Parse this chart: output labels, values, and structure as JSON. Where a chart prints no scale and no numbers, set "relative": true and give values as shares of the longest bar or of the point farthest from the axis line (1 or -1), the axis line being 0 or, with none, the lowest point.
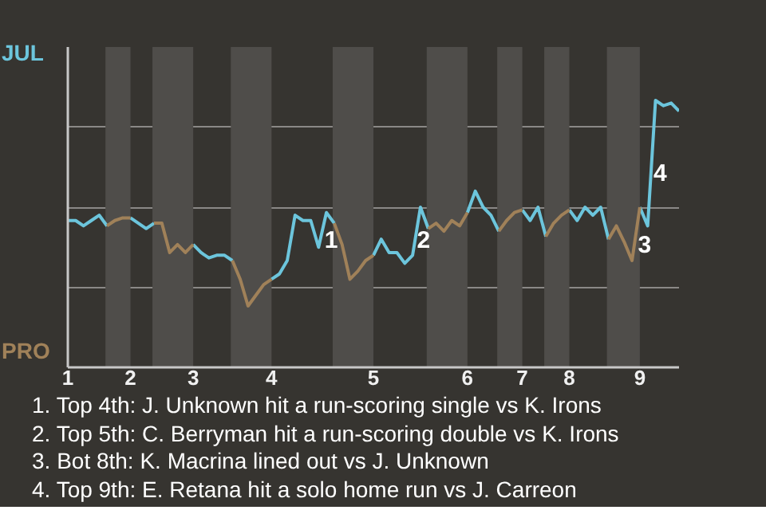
{
  "chart_data": {
    "type": "line",
    "relative": true,
    "grid": "y",
    "marker": "none",
    "line_style": "solid",
    "tick_labels": "x",
    "categories": [
      "1",
      null,
      null,
      null,
      null,
      null,
      null,
      null,
      "2",
      null,
      null,
      null,
      null,
      null,
      null,
      null,
      "3",
      null,
      null,
      null,
      null,
      null,
      null,
      null,
      null,
      null,
      "4",
      null,
      null,
      null,
      null,
      null,
      null,
      null,
      null,
      null,
      null,
      null,
      null,
      "5",
      null,
      null,
      null,
      null,
      null,
      null,
      null,
      null,
      null,
      null,
      null,
      "6",
      null,
      null,
      null,
      null,
      null,
      null,
      "7",
      null,
      null,
      null,
      null,
      null,
      "8",
      null,
      null,
      null,
      null,
      null,
      null,
      null,
      null,
      "9",
      null,
      null,
      null,
      null,
      null
    ],
    "series": [
      {
        "name": "JUL",
        "color": "#6cc5dc",
        "values": [
          0.55,
          0.55,
          0.53,
          0.55,
          0.57,
          0.53,
          null,
          null,
          0.56,
          0.54,
          0.52,
          0.54,
          null,
          null,
          null,
          null,
          0.46,
          0.43,
          0.41,
          0.42,
          0.42,
          0.4,
          null,
          null,
          null,
          null,
          0.33,
          0.35,
          0.4,
          0.57,
          0.55,
          0.55,
          0.45,
          0.58,
          0.54,
          null,
          null,
          null,
          null,
          0.42,
          0.48,
          0.43,
          0.43,
          0.39,
          0.42,
          0.6,
          0.52,
          null,
          null,
          null,
          null,
          0.58,
          0.66,
          0.6,
          0.57,
          0.51,
          null,
          null,
          0.59,
          0.55,
          0.6,
          0.49,
          null,
          null,
          0.59,
          0.55,
          0.6,
          0.57,
          0.6,
          0.48,
          null,
          null,
          null,
          0.6,
          0.53,
          1.0,
          0.98,
          0.99,
          0.96
        ]
      },
      {
        "name": "PRO",
        "color": "#a08159",
        "values": [
          null,
          null,
          null,
          null,
          null,
          0.53,
          0.55,
          0.56,
          0.56,
          null,
          null,
          0.54,
          0.54,
          0.43,
          0.46,
          0.43,
          0.46,
          null,
          null,
          null,
          null,
          0.4,
          0.33,
          0.23,
          0.27,
          0.31,
          0.33,
          null,
          null,
          null,
          null,
          null,
          null,
          null,
          0.54,
          0.46,
          0.33,
          0.36,
          0.4,
          0.42,
          null,
          null,
          null,
          null,
          null,
          null,
          0.52,
          0.54,
          0.51,
          0.55,
          0.53,
          0.58,
          null,
          null,
          null,
          0.51,
          0.55,
          0.58,
          0.59,
          null,
          null,
          0.49,
          0.54,
          0.57,
          0.59,
          null,
          null,
          null,
          null,
          0.48,
          0.53,
          0.47,
          0.4,
          0.6,
          null,
          null,
          null,
          null,
          null
        ]
      }
    ],
    "annotations": [
      {
        "text": "1",
        "y": 0.48
      },
      {
        "text": "2",
        "y": 0.48
      },
      {
        "text": "3",
        "y": 0.6
      },
      {
        "text": "4",
        "y": 0.73
      },
      "1. Top 4th: J. Unknown hit a run-scoring single vs K. Irons",
      "2. Top 5th: C. Berryman hit a run-scoring double vs K. Irons",
      "3. Bot 8th: K. Macrina lined out vs J. Unknown",
      "4. Top 9th: E. Retana hit a solo home run vs J. Carreon"
    ]
  }
}
